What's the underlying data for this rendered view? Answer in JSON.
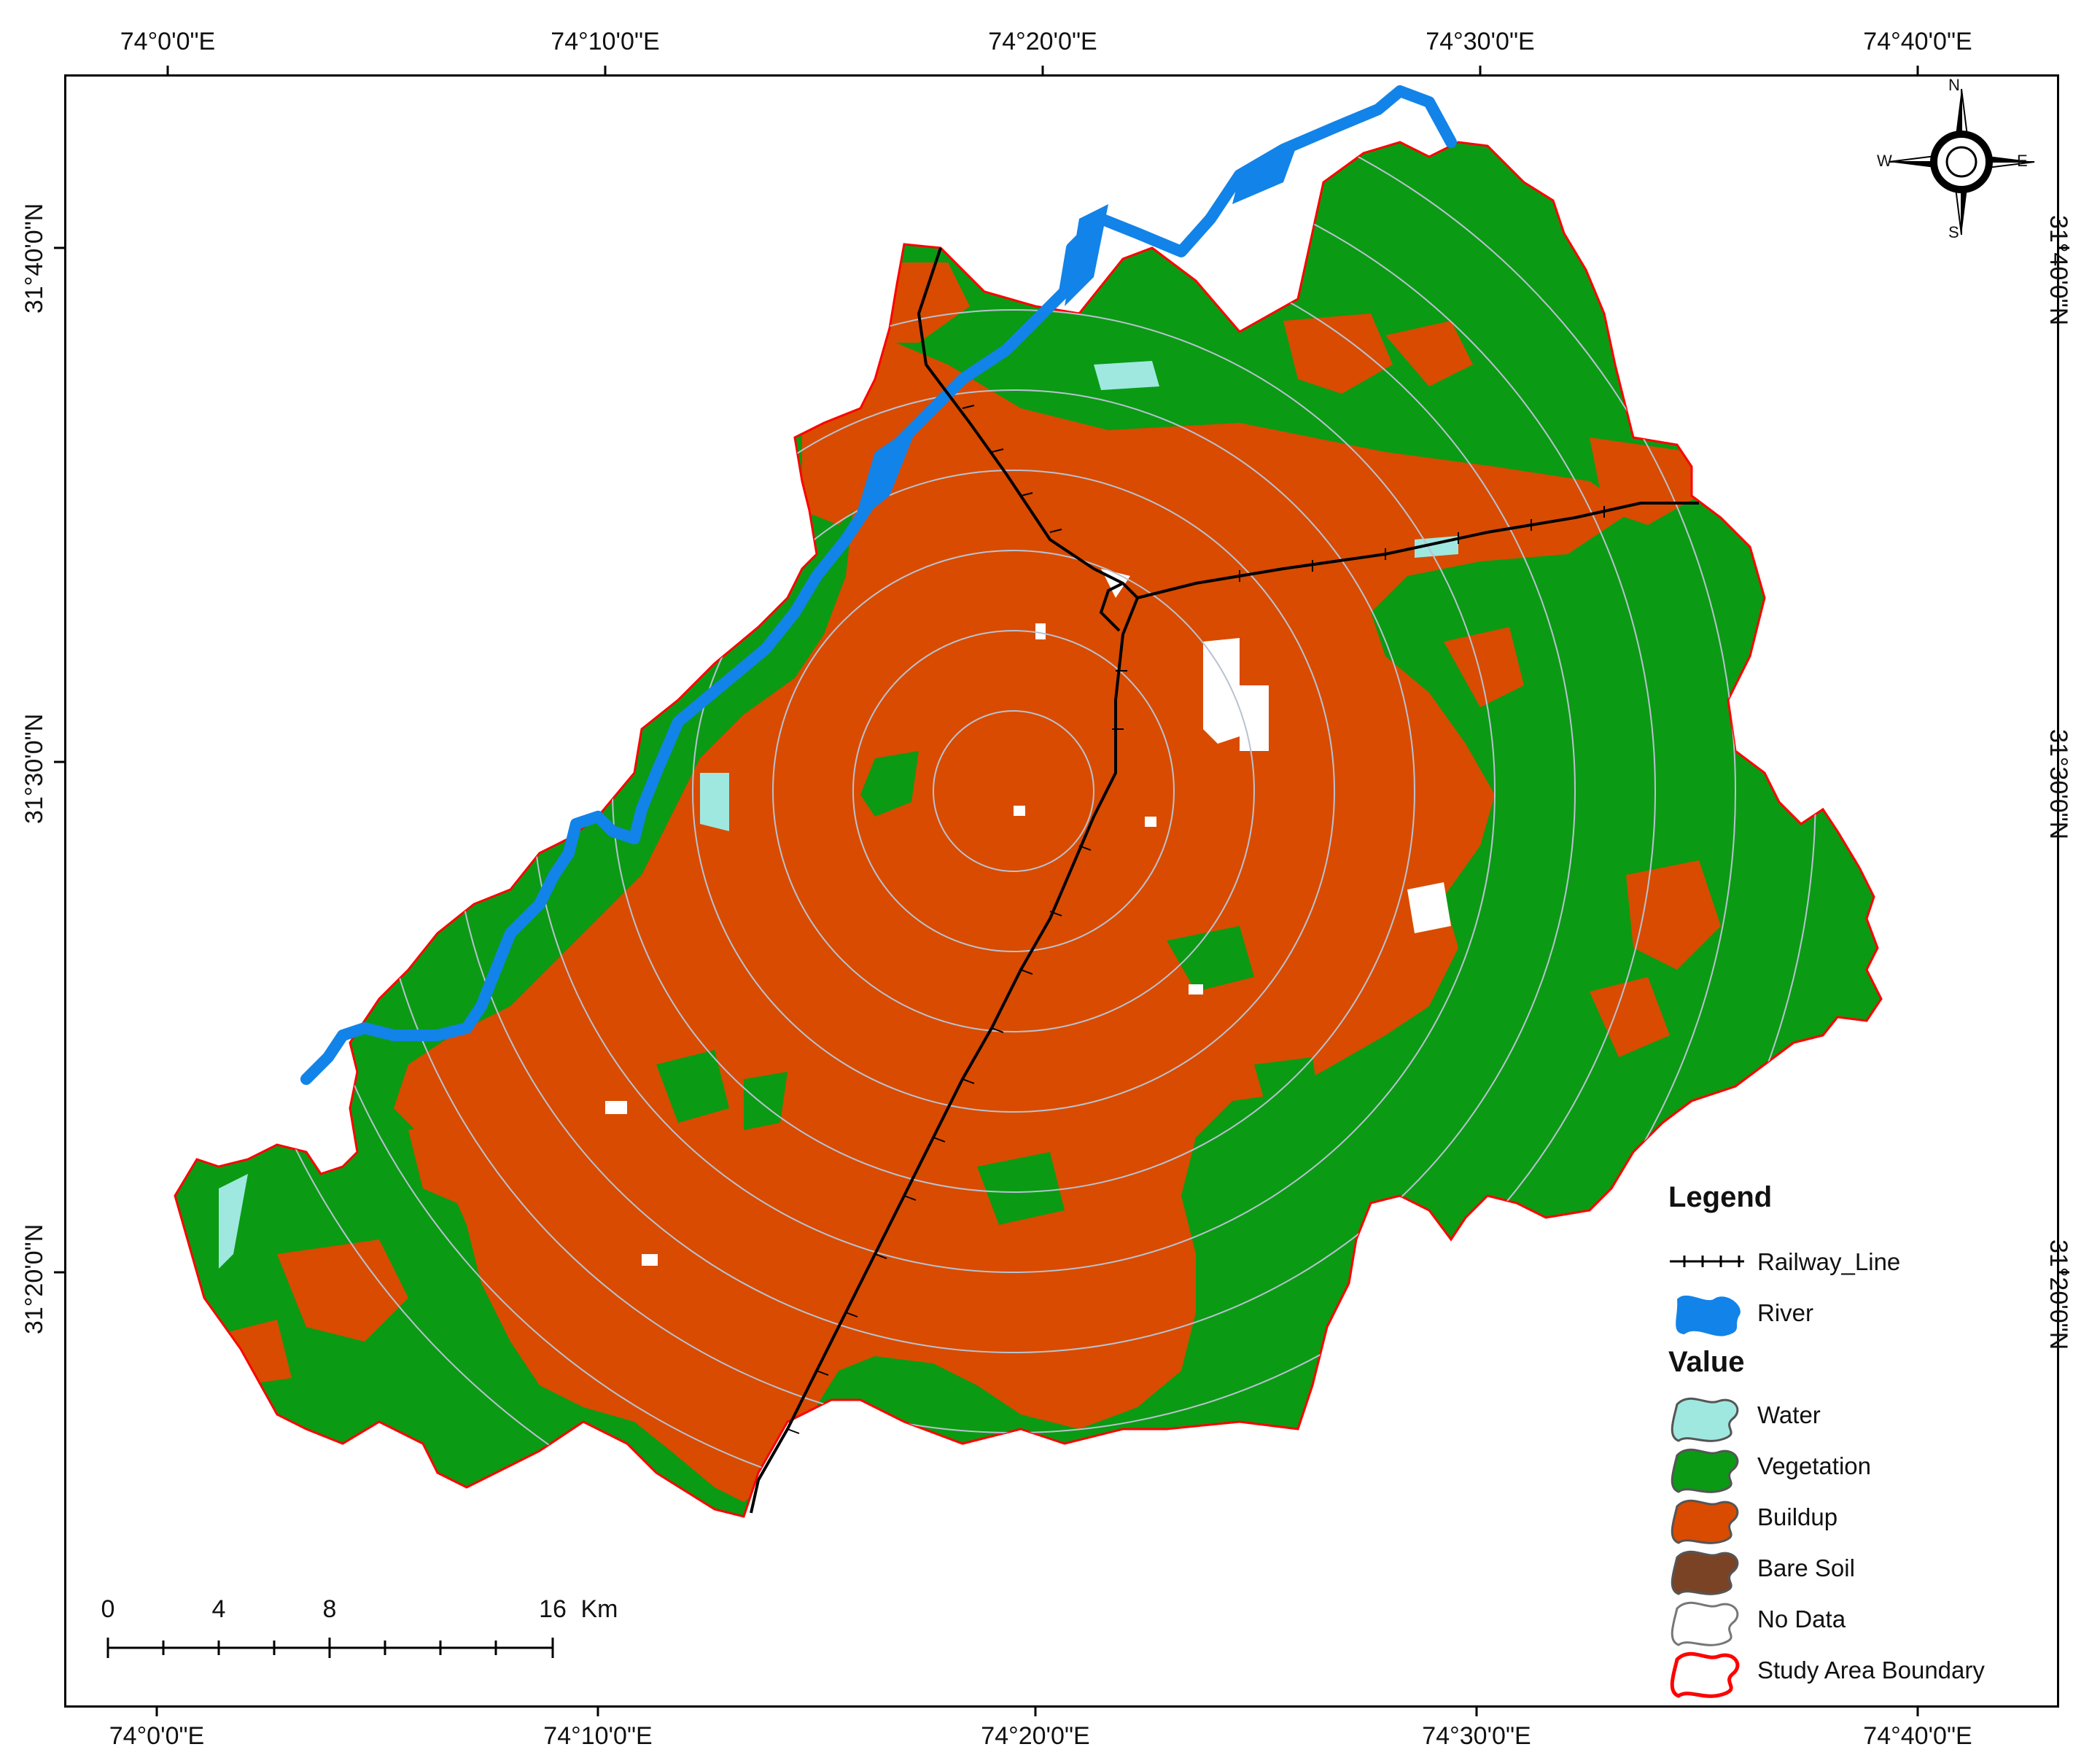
{
  "graticule": {
    "top": [
      "74°0'0\"E",
      "74°10'0\"E",
      "74°20'0\"E",
      "74°30'0\"E",
      "74°40'0\"E"
    ],
    "bottom": [
      "74°0'0\"E",
      "74°10'0\"E",
      "74°20'0\"E",
      "74°30'0\"E",
      "74°40'0\"E"
    ],
    "left": [
      "31°40'0\"N",
      "31°30'0\"N",
      "31°20'0\"N"
    ],
    "right": [
      "31°40'0\"N",
      "31°30'0\"N",
      "31°20'0\"N"
    ]
  },
  "compass": {
    "n": "N",
    "s": "S",
    "e": "E",
    "w": "W"
  },
  "legend": {
    "title": "Legend",
    "railway": "Railway_Line",
    "river": "River",
    "value_title": "Value",
    "classes": [
      {
        "label": "Water",
        "color": "#9fe8e0"
      },
      {
        "label": "Vegetation",
        "color": "#0b9a14"
      },
      {
        "label": "Buildup",
        "color": "#d94b00"
      },
      {
        "label": "Bare Soil",
        "color": "#7a4326"
      },
      {
        "label": "No Data",
        "color": "#ffffff"
      },
      {
        "label": "Study Area Boundary",
        "color": "#ff0000"
      }
    ]
  },
  "scale_bar": {
    "ticks": [
      "0",
      "4",
      "8",
      "16"
    ],
    "unit": "Km"
  },
  "colors": {
    "river": "#1283e8",
    "vegetation": "#0b9a14",
    "buildup": "#d94b00",
    "water": "#9fe8e0",
    "boundary": "#ff0000",
    "ring": "#b8c2d0"
  }
}
